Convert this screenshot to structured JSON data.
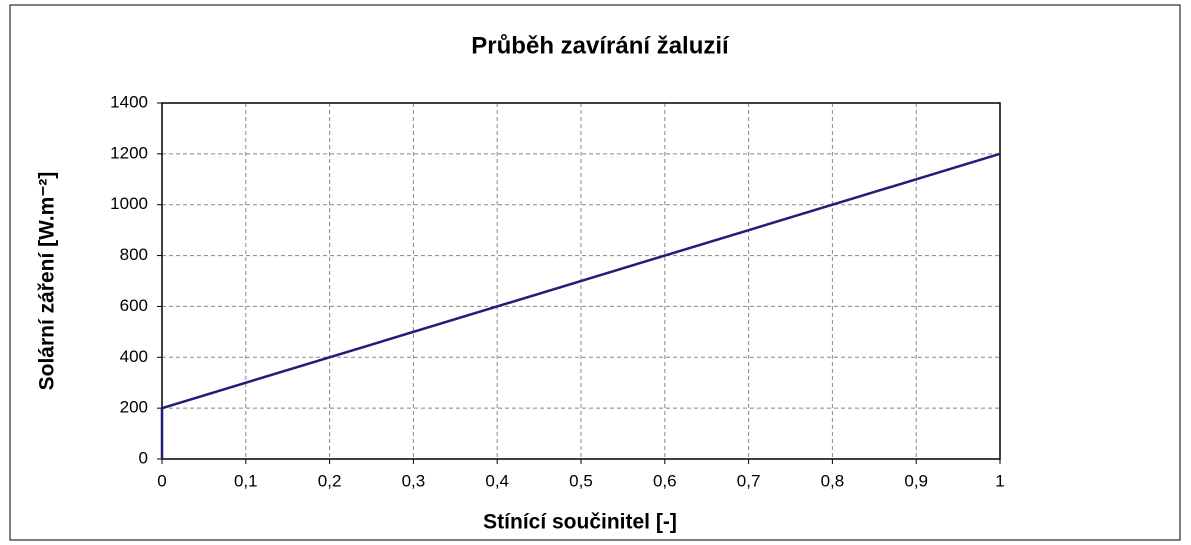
{
  "chart_data": {
    "type": "line",
    "title": "Průběh zavírání žaluzií",
    "xlabel": "Stínící součinitel [-]",
    "ylabel": "Solární záření [W.m⁻²]",
    "x": [
      0,
      0,
      1
    ],
    "values": [
      0,
      200,
      1200
    ],
    "color": "#1f1f7a",
    "xlim": [
      0,
      1
    ],
    "ylim": [
      0,
      1400
    ],
    "xticks": [
      0,
      {
        "value": 0.1,
        "label": "0,1"
      },
      {
        "value": 0.2,
        "label": "0,2"
      },
      {
        "value": 0.3,
        "label": "0,3"
      },
      {
        "value": 0.4,
        "label": "0,4"
      },
      {
        "value": 0.5,
        "label": "0,5"
      },
      {
        "value": 0.6,
        "label": "0,6"
      },
      {
        "value": 0.7,
        "label": "0,7"
      },
      {
        "value": 0.8,
        "label": "0,8"
      },
      {
        "value": 0.9,
        "label": "0,9"
      },
      1
    ],
    "yticks": [
      0,
      200,
      400,
      600,
      800,
      1000,
      1200,
      1400
    ],
    "grid": true
  }
}
